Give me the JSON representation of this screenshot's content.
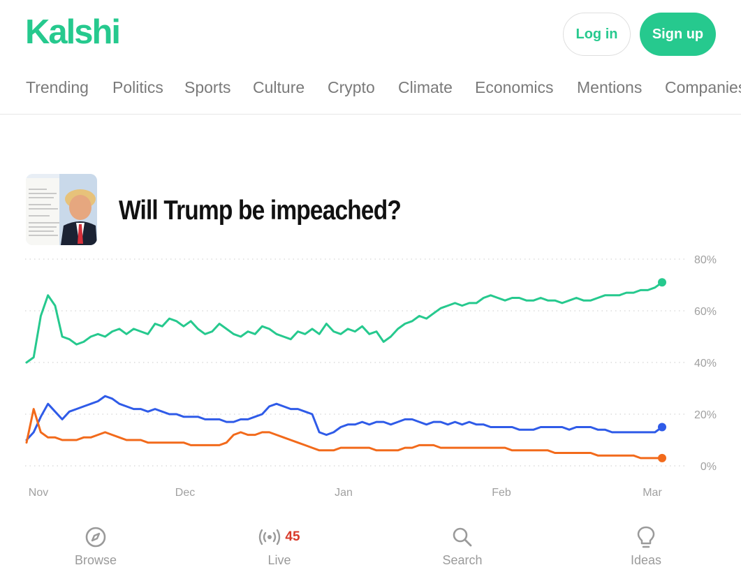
{
  "brand": {
    "logo": "Kalshi",
    "accent": "#26c98e"
  },
  "header": {
    "login_label": "Log in",
    "signup_label": "Sign up"
  },
  "nav": {
    "items": [
      "Trending",
      "Politics",
      "Sports",
      "Culture",
      "Crypto",
      "Climate",
      "Economics",
      "Mentions",
      "Companies"
    ]
  },
  "market": {
    "title": "Will Trump be impeached?",
    "thumbnail_icon": "trump-document-thumbnail"
  },
  "chart_data": {
    "type": "line",
    "x_tick_labels": [
      "Nov",
      "Dec",
      "Jan",
      "Feb",
      "Mar"
    ],
    "y_tick_labels": [
      "80%",
      "60%",
      "40%",
      "20%",
      "0%"
    ],
    "ylim": [
      0,
      80
    ],
    "grid": true,
    "series": [
      {
        "color": "#26c98e",
        "points": [
          [
            0,
            40
          ],
          [
            1,
            42
          ],
          [
            2,
            58
          ],
          [
            3,
            66
          ],
          [
            4,
            62
          ],
          [
            5,
            50
          ],
          [
            6,
            49
          ],
          [
            7,
            47
          ],
          [
            8,
            48
          ],
          [
            9,
            50
          ],
          [
            10,
            51
          ],
          [
            11,
            50
          ],
          [
            12,
            52
          ],
          [
            13,
            53
          ],
          [
            14,
            51
          ],
          [
            15,
            53
          ],
          [
            16,
            52
          ],
          [
            17,
            51
          ],
          [
            18,
            55
          ],
          [
            19,
            54
          ],
          [
            20,
            57
          ],
          [
            21,
            56
          ],
          [
            22,
            54
          ],
          [
            23,
            56
          ],
          [
            24,
            53
          ],
          [
            25,
            51
          ],
          [
            26,
            52
          ],
          [
            27,
            55
          ],
          [
            28,
            53
          ],
          [
            29,
            51
          ],
          [
            30,
            50
          ],
          [
            31,
            52
          ],
          [
            32,
            51
          ],
          [
            33,
            54
          ],
          [
            34,
            53
          ],
          [
            35,
            51
          ],
          [
            36,
            50
          ],
          [
            37,
            49
          ],
          [
            38,
            52
          ],
          [
            39,
            51
          ],
          [
            40,
            53
          ],
          [
            41,
            51
          ],
          [
            42,
            55
          ],
          [
            43,
            52
          ],
          [
            44,
            51
          ],
          [
            45,
            53
          ],
          [
            46,
            52
          ],
          [
            47,
            54
          ],
          [
            48,
            51
          ],
          [
            49,
            52
          ],
          [
            50,
            48
          ],
          [
            51,
            50
          ],
          [
            52,
            53
          ],
          [
            53,
            55
          ],
          [
            54,
            56
          ],
          [
            55,
            58
          ],
          [
            56,
            57
          ],
          [
            57,
            59
          ],
          [
            58,
            61
          ],
          [
            59,
            62
          ],
          [
            60,
            63
          ],
          [
            61,
            62
          ],
          [
            62,
            63
          ],
          [
            63,
            63
          ],
          [
            64,
            65
          ],
          [
            65,
            66
          ],
          [
            66,
            65
          ],
          [
            67,
            64
          ],
          [
            68,
            65
          ],
          [
            69,
            65
          ],
          [
            70,
            64
          ],
          [
            71,
            64
          ],
          [
            72,
            65
          ],
          [
            73,
            64
          ],
          [
            74,
            64
          ],
          [
            75,
            63
          ],
          [
            76,
            64
          ],
          [
            77,
            65
          ],
          [
            78,
            64
          ],
          [
            79,
            64
          ],
          [
            80,
            65
          ],
          [
            81,
            66
          ],
          [
            82,
            66
          ],
          [
            83,
            66
          ],
          [
            84,
            67
          ],
          [
            85,
            67
          ],
          [
            86,
            68
          ],
          [
            87,
            68
          ],
          [
            88,
            69
          ],
          [
            89,
            71
          ]
        ]
      },
      {
        "color": "#2f5be8",
        "points": [
          [
            0,
            10
          ],
          [
            1,
            13
          ],
          [
            2,
            19
          ],
          [
            3,
            24
          ],
          [
            4,
            21
          ],
          [
            5,
            18
          ],
          [
            6,
            21
          ],
          [
            7,
            22
          ],
          [
            8,
            23
          ],
          [
            9,
            24
          ],
          [
            10,
            25
          ],
          [
            11,
            27
          ],
          [
            12,
            26
          ],
          [
            13,
            24
          ],
          [
            14,
            23
          ],
          [
            15,
            22
          ],
          [
            16,
            22
          ],
          [
            17,
            21
          ],
          [
            18,
            22
          ],
          [
            19,
            21
          ],
          [
            20,
            20
          ],
          [
            21,
            20
          ],
          [
            22,
            19
          ],
          [
            23,
            19
          ],
          [
            24,
            19
          ],
          [
            25,
            18
          ],
          [
            26,
            18
          ],
          [
            27,
            18
          ],
          [
            28,
            17
          ],
          [
            29,
            17
          ],
          [
            30,
            18
          ],
          [
            31,
            18
          ],
          [
            32,
            19
          ],
          [
            33,
            20
          ],
          [
            34,
            23
          ],
          [
            35,
            24
          ],
          [
            36,
            23
          ],
          [
            37,
            22
          ],
          [
            38,
            22
          ],
          [
            39,
            21
          ],
          [
            40,
            20
          ],
          [
            41,
            13
          ],
          [
            42,
            12
          ],
          [
            43,
            13
          ],
          [
            44,
            15
          ],
          [
            45,
            16
          ],
          [
            46,
            16
          ],
          [
            47,
            17
          ],
          [
            48,
            16
          ],
          [
            49,
            17
          ],
          [
            50,
            17
          ],
          [
            51,
            16
          ],
          [
            52,
            17
          ],
          [
            53,
            18
          ],
          [
            54,
            18
          ],
          [
            55,
            17
          ],
          [
            56,
            16
          ],
          [
            57,
            17
          ],
          [
            58,
            17
          ],
          [
            59,
            16
          ],
          [
            60,
            17
          ],
          [
            61,
            16
          ],
          [
            62,
            17
          ],
          [
            63,
            16
          ],
          [
            64,
            16
          ],
          [
            65,
            15
          ],
          [
            66,
            15
          ],
          [
            67,
            15
          ],
          [
            68,
            15
          ],
          [
            69,
            14
          ],
          [
            70,
            14
          ],
          [
            71,
            14
          ],
          [
            72,
            15
          ],
          [
            73,
            15
          ],
          [
            74,
            15
          ],
          [
            75,
            15
          ],
          [
            76,
            14
          ],
          [
            77,
            15
          ],
          [
            78,
            15
          ],
          [
            79,
            15
          ],
          [
            80,
            14
          ],
          [
            81,
            14
          ],
          [
            82,
            13
          ],
          [
            83,
            13
          ],
          [
            84,
            13
          ],
          [
            85,
            13
          ],
          [
            86,
            13
          ],
          [
            87,
            13
          ],
          [
            88,
            13
          ],
          [
            89,
            15
          ]
        ]
      },
      {
        "color": "#f26a1b",
        "points": [
          [
            0,
            9
          ],
          [
            1,
            22
          ],
          [
            2,
            13
          ],
          [
            3,
            11
          ],
          [
            4,
            11
          ],
          [
            5,
            10
          ],
          [
            6,
            10
          ],
          [
            7,
            10
          ],
          [
            8,
            11
          ],
          [
            9,
            11
          ],
          [
            10,
            12
          ],
          [
            11,
            13
          ],
          [
            12,
            12
          ],
          [
            13,
            11
          ],
          [
            14,
            10
          ],
          [
            15,
            10
          ],
          [
            16,
            10
          ],
          [
            17,
            9
          ],
          [
            18,
            9
          ],
          [
            19,
            9
          ],
          [
            20,
            9
          ],
          [
            21,
            9
          ],
          [
            22,
            9
          ],
          [
            23,
            8
          ],
          [
            24,
            8
          ],
          [
            25,
            8
          ],
          [
            26,
            8
          ],
          [
            27,
            8
          ],
          [
            28,
            9
          ],
          [
            29,
            12
          ],
          [
            30,
            13
          ],
          [
            31,
            12
          ],
          [
            32,
            12
          ],
          [
            33,
            13
          ],
          [
            34,
            13
          ],
          [
            35,
            12
          ],
          [
            36,
            11
          ],
          [
            37,
            10
          ],
          [
            38,
            9
          ],
          [
            39,
            8
          ],
          [
            40,
            7
          ],
          [
            41,
            6
          ],
          [
            42,
            6
          ],
          [
            43,
            6
          ],
          [
            44,
            7
          ],
          [
            45,
            7
          ],
          [
            46,
            7
          ],
          [
            47,
            7
          ],
          [
            48,
            7
          ],
          [
            49,
            6
          ],
          [
            50,
            6
          ],
          [
            51,
            6
          ],
          [
            52,
            6
          ],
          [
            53,
            7
          ],
          [
            54,
            7
          ],
          [
            55,
            8
          ],
          [
            56,
            8
          ],
          [
            57,
            8
          ],
          [
            58,
            7
          ],
          [
            59,
            7
          ],
          [
            60,
            7
          ],
          [
            61,
            7
          ],
          [
            62,
            7
          ],
          [
            63,
            7
          ],
          [
            64,
            7
          ],
          [
            65,
            7
          ],
          [
            66,
            7
          ],
          [
            67,
            7
          ],
          [
            68,
            6
          ],
          [
            69,
            6
          ],
          [
            70,
            6
          ],
          [
            71,
            6
          ],
          [
            72,
            6
          ],
          [
            73,
            6
          ],
          [
            74,
            5
          ],
          [
            75,
            5
          ],
          [
            76,
            5
          ],
          [
            77,
            5
          ],
          [
            78,
            5
          ],
          [
            79,
            5
          ],
          [
            80,
            4
          ],
          [
            81,
            4
          ],
          [
            82,
            4
          ],
          [
            83,
            4
          ],
          [
            84,
            4
          ],
          [
            85,
            4
          ],
          [
            86,
            3
          ],
          [
            87,
            3
          ],
          [
            88,
            3
          ],
          [
            89,
            3
          ]
        ]
      }
    ]
  },
  "bottom_nav": {
    "browse_label": "Browse",
    "live_label": "Live",
    "live_count": "45",
    "search_label": "Search",
    "ideas_label": "Ideas"
  }
}
